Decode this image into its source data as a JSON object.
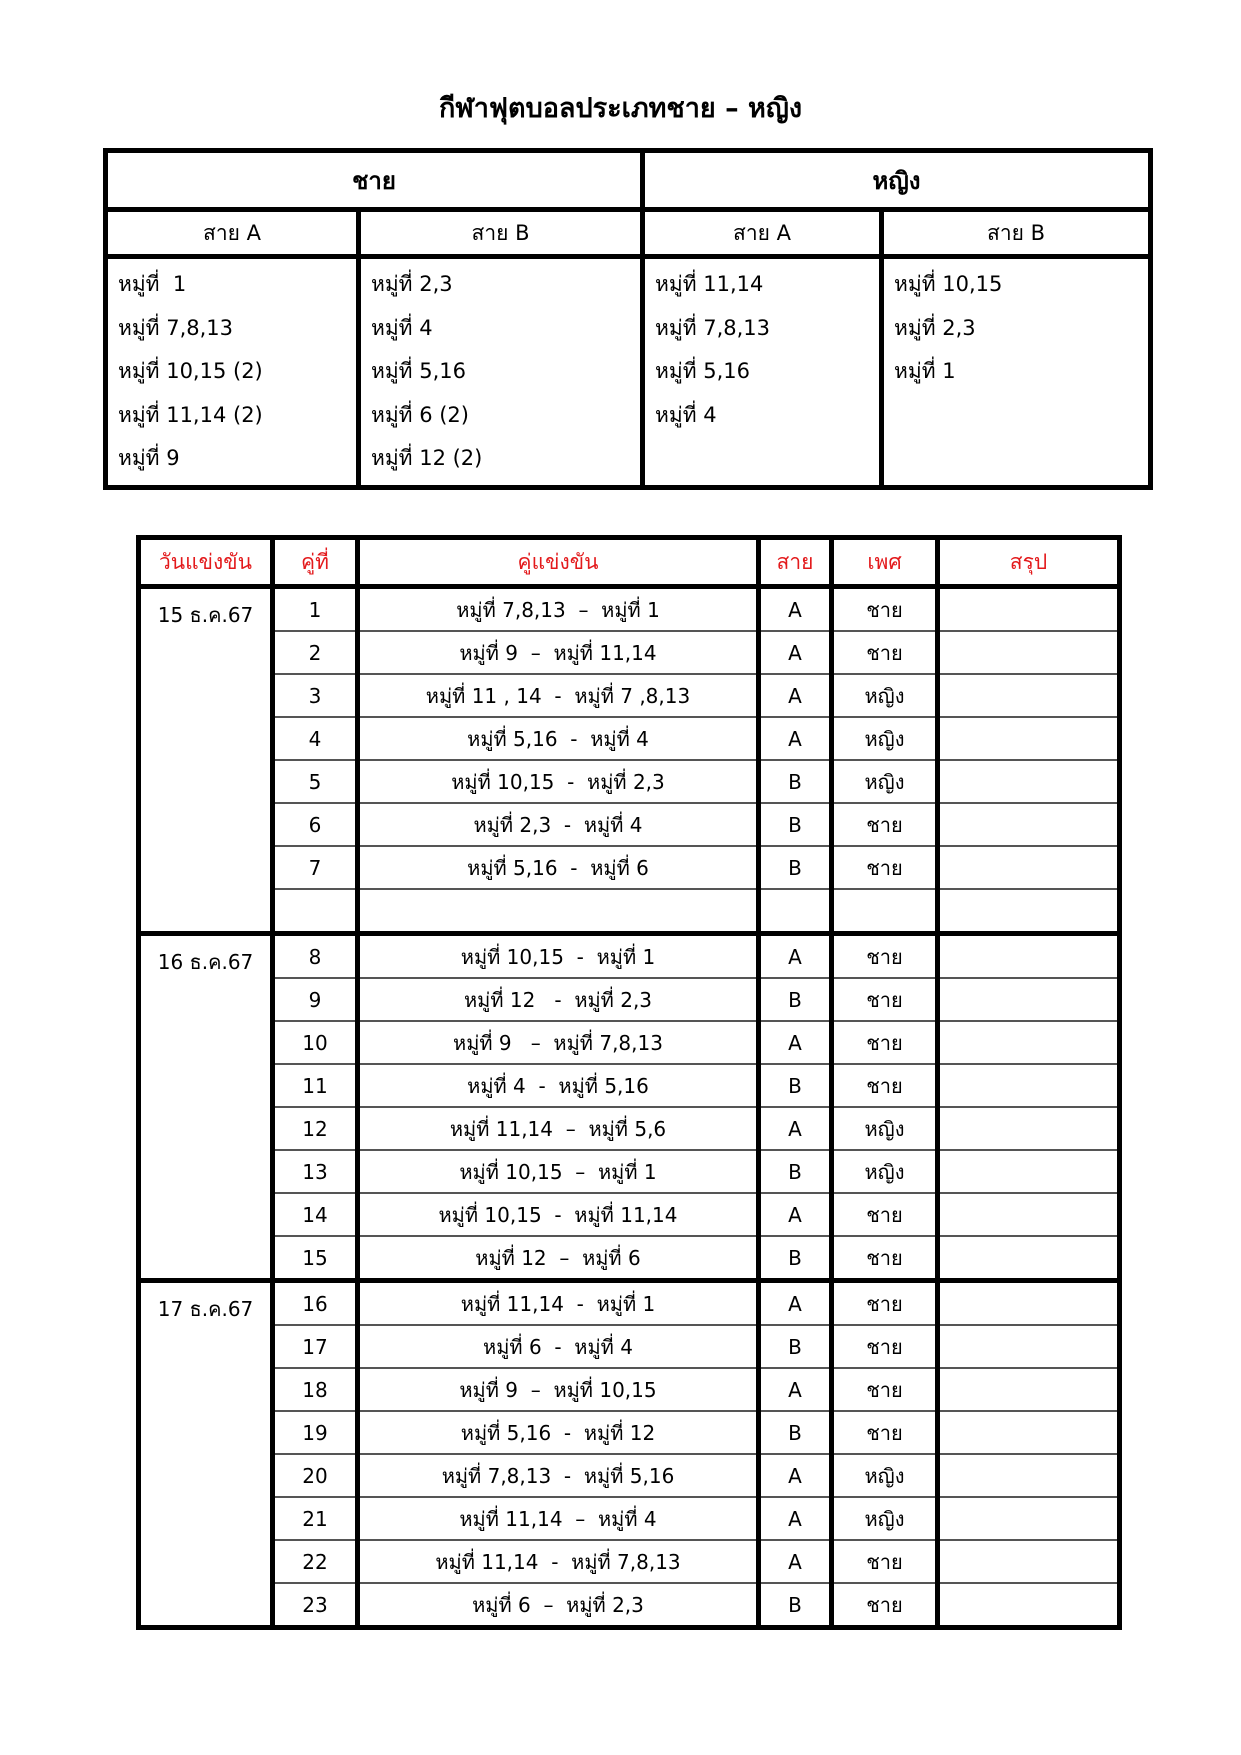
{
  "title": "กีฬาฟุตบอลประเภทชาย – หญิง",
  "groups": {
    "genders": [
      "ชาย",
      "หญิง"
    ],
    "columns": [
      {
        "zone": "สาย  A",
        "teams": [
          "หมู่ที่  1",
          "หมู่ที่ 7,8,13",
          "หมู่ที่ 10,15 (2)",
          "หมู่ที่ 11,14 (2)",
          "หมู่ที่ 9"
        ]
      },
      {
        "zone": "สาย  B",
        "teams": [
          "หมู่ที่ 2,3",
          "หมู่ที่ 4",
          "หมู่ที่ 5,16",
          "หมู่ที่ 6 (2)",
          "หมู่ที่ 12 (2)"
        ]
      },
      {
        "zone": "สาย  A",
        "teams": [
          "หมู่ที่ 11,14",
          "หมู่ที่ 7,8,13",
          "หมู่ที่ 5,16",
          "หมู่ที่ 4"
        ]
      },
      {
        "zone": "สาย  B",
        "teams": [
          "หมู่ที่ 10,15",
          "หมู่ที่ 2,3",
          "หมู่ที่ 1"
        ]
      }
    ]
  },
  "schedule": {
    "headers": [
      "วันแข่งขัน",
      "คู่ที่",
      "คู่แข่งขัน",
      "สาย",
      "เพศ",
      "สรุป"
    ],
    "header_color": "#e31a1c",
    "days": [
      {
        "date": "15 ธ.ค.67",
        "matches": [
          {
            "no": "1",
            "pair": "หมู่ที่ 7,8,13  –  หมู่ที่ 1",
            "zone": "A",
            "gender": "ชาย",
            "summary": ""
          },
          {
            "no": "2",
            "pair": "หมู่ที่ 9  –  หมู่ที่ 11,14",
            "zone": "A",
            "gender": "ชาย",
            "summary": ""
          },
          {
            "no": "3",
            "pair": "หมู่ที่ 11 , 14  -  หมู่ที่ 7 ,8,13",
            "zone": "A",
            "gender": "หญิง",
            "summary": ""
          },
          {
            "no": "4",
            "pair": "หมู่ที่ 5,16  -  หมู่ที่ 4",
            "zone": "A",
            "gender": "หญิง",
            "summary": ""
          },
          {
            "no": "5",
            "pair": "หมู่ที่ 10,15  -  หมู่ที่ 2,3",
            "zone": "B",
            "gender": "หญิง",
            "summary": ""
          },
          {
            "no": "6",
            "pair": "หมู่ที่ 2,3  -  หมู่ที่ 4",
            "zone": "B",
            "gender": "ชาย",
            "summary": ""
          },
          {
            "no": "7",
            "pair": "หมู่ที่ 5,16  -  หมู่ที่ 6",
            "zone": "B",
            "gender": "ชาย",
            "summary": ""
          },
          {
            "no": "",
            "pair": "",
            "zone": "",
            "gender": "",
            "summary": ""
          }
        ]
      },
      {
        "date": "16 ธ.ค.67",
        "matches": [
          {
            "no": "8",
            "pair": "หมู่ที่ 10,15  -  หมู่ที่ 1",
            "zone": "A",
            "gender": "ชาย",
            "summary": ""
          },
          {
            "no": "9",
            "pair": "หมู่ที่ 12   -  หมู่ที่ 2,3",
            "zone": "B",
            "gender": "ชาย",
            "summary": ""
          },
          {
            "no": "10",
            "pair": "หมู่ที่ 9   –  หมู่ที่ 7,8,13",
            "zone": "A",
            "gender": "ชาย",
            "summary": ""
          },
          {
            "no": "11",
            "pair": "หมู่ที่ 4  -  หมู่ที่ 5,16",
            "zone": "B",
            "gender": "ชาย",
            "summary": ""
          },
          {
            "no": "12",
            "pair": "หมู่ที่ 11,14  –  หมู่ที่ 5,6",
            "zone": "A",
            "gender": "หญิง",
            "summary": ""
          },
          {
            "no": "13",
            "pair": "หมู่ที่ 10,15  –  หมู่ที่ 1",
            "zone": "B",
            "gender": "หญิง",
            "summary": ""
          },
          {
            "no": "14",
            "pair": "หมู่ที่ 10,15  -  หมู่ที่ 11,14",
            "zone": "A",
            "gender": "ชาย",
            "summary": ""
          },
          {
            "no": "15",
            "pair": "หมู่ที่ 12  –  หมู่ที่ 6",
            "zone": "B",
            "gender": "ชาย",
            "summary": ""
          }
        ]
      },
      {
        "date": "17 ธ.ค.67",
        "matches": [
          {
            "no": "16",
            "pair": "หมู่ที่ 11,14  -  หมู่ที่ 1",
            "zone": "A",
            "gender": "ชาย",
            "summary": ""
          },
          {
            "no": "17",
            "pair": "หมู่ที่ 6  -  หมู่ที่ 4",
            "zone": "B",
            "gender": "ชาย",
            "summary": ""
          },
          {
            "no": "18",
            "pair": "หมู่ที่ 9  –  หมู่ที่ 10,15",
            "zone": "A",
            "gender": "ชาย",
            "summary": ""
          },
          {
            "no": "19",
            "pair": "หมู่ที่ 5,16  -  หมู่ที่ 12",
            "zone": "B",
            "gender": "ชาย",
            "summary": ""
          },
          {
            "no": "20",
            "pair": "หมู่ที่ 7,8,13  -  หมู่ที่ 5,16",
            "zone": "A",
            "gender": "หญิง",
            "summary": ""
          },
          {
            "no": "21",
            "pair": "หมู่ที่ 11,14  –  หมู่ที่ 4",
            "zone": "A",
            "gender": "หญิง",
            "summary": ""
          },
          {
            "no": "22",
            "pair": "หมู่ที่ 11,14  -  หมู่ที่ 7,8,13",
            "zone": "A",
            "gender": "ชาย",
            "summary": ""
          },
          {
            "no": "23",
            "pair": "หมู่ที่ 6  –  หมู่ที่ 2,3",
            "zone": "B",
            "gender": "ชาย",
            "summary": ""
          }
        ]
      }
    ]
  }
}
